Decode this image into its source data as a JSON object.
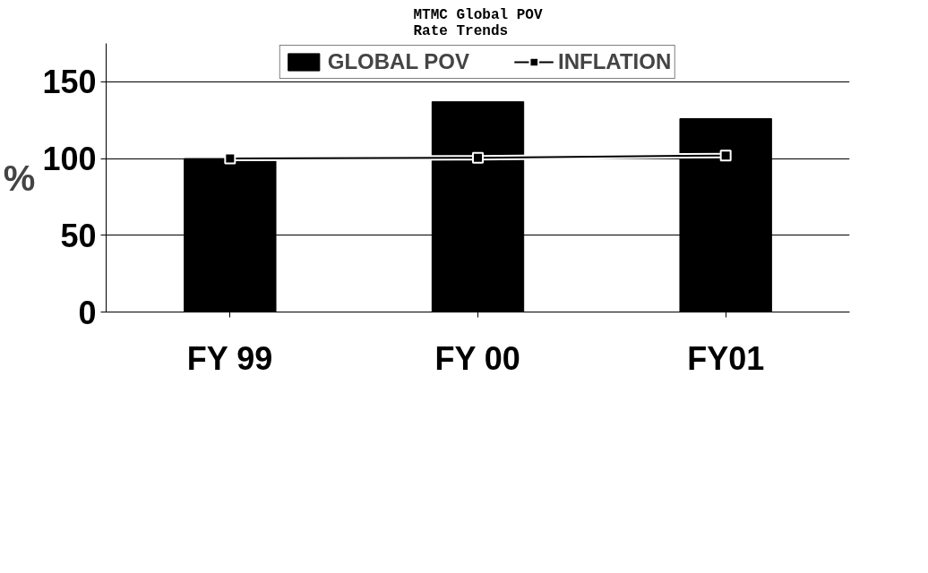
{
  "chart_data": {
    "type": "bar",
    "title": "MTMC Global POV\nRate Trends",
    "ylabel": "%",
    "categories": [
      "FY 99",
      "FY 00",
      "FY01"
    ],
    "series": [
      {
        "name": "GLOBAL POV",
        "color": "#000000",
        "values": [
          100,
          137,
          126
        ]
      },
      {
        "name": "INFLATION",
        "type": "line",
        "color": "#000000",
        "marker": "square",
        "values": [
          100,
          100.5,
          102
        ]
      }
    ],
    "ylim": [
      0,
      175
    ],
    "yticks": [
      0,
      50,
      100,
      150
    ],
    "grid": "y",
    "legend": "top"
  }
}
